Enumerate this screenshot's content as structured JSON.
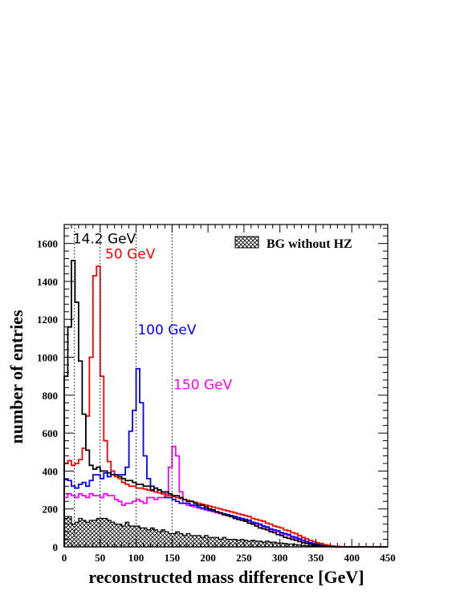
{
  "chart_data": {
    "type": "histogram",
    "xlabel": "reconstructed mass difference [GeV]",
    "ylabel": "number of entries",
    "xlim": [
      0,
      450
    ],
    "ylim": [
      0,
      1700
    ],
    "x_ticks": [
      0,
      50,
      100,
      150,
      200,
      250,
      300,
      350,
      400,
      450
    ],
    "y_ticks": [
      0,
      200,
      400,
      600,
      800,
      1000,
      1200,
      1400,
      1600
    ],
    "bin_width": 5,
    "bin_start": 0,
    "grid": false,
    "legend_position": "top-right",
    "legend": {
      "label": "BG without HZ",
      "style": "cross-hatched"
    },
    "reference_lines_x": [
      14.2,
      50,
      100,
      150
    ],
    "annotations": [
      {
        "text": "14.2 GeV",
        "color": "#000000",
        "x": 12,
        "y": 1600
      },
      {
        "text": "50 GeV",
        "color": "#ff0000",
        "x": 57,
        "y": 1520
      },
      {
        "text": "100 GeV",
        "color": "#0000ff",
        "x": 102,
        "y": 1120
      },
      {
        "text": "150 GeV",
        "color": "#ff00ff",
        "x": 152,
        "y": 830
      }
    ],
    "series": [
      {
        "color": "#000000",
        "values": [
          900,
          1160,
          1510,
          1290,
          980,
          700,
          510,
          430,
          410,
          420,
          400,
          400,
          390,
          380,
          380,
          370,
          360,
          350,
          350,
          340,
          330,
          330,
          320,
          320,
          300,
          310,
          300,
          290,
          290,
          280,
          270,
          270,
          260,
          250,
          240,
          240,
          230,
          220,
          220,
          210,
          200,
          195,
          185,
          180,
          170,
          165,
          160,
          150,
          145,
          140,
          135,
          125,
          120,
          110,
          100,
          95,
          90,
          80,
          75,
          65,
          60,
          50,
          45,
          40,
          35,
          28,
          22,
          18,
          14,
          10,
          8,
          5,
          3,
          2,
          1,
          0,
          0,
          0,
          0,
          0,
          0,
          0,
          0,
          0,
          0,
          0,
          0,
          0,
          0,
          0
        ]
      },
      {
        "color": "#ff0000",
        "values": [
          440,
          455,
          430,
          440,
          460,
          520,
          690,
          1000,
          1430,
          1480,
          900,
          560,
          450,
          400,
          370,
          360,
          340,
          330,
          320,
          320,
          310,
          310,
          305,
          300,
          295,
          290,
          285,
          280,
          270,
          270,
          265,
          260,
          255,
          250,
          245,
          240,
          235,
          230,
          225,
          220,
          215,
          210,
          205,
          200,
          195,
          190,
          185,
          180,
          175,
          170,
          165,
          160,
          150,
          145,
          140,
          135,
          125,
          120,
          110,
          105,
          100,
          90,
          85,
          75,
          70,
          60,
          50,
          42,
          35,
          28,
          22,
          18,
          12,
          8,
          5,
          3,
          2,
          1,
          0,
          0,
          0,
          0,
          0,
          0,
          0,
          0,
          0,
          0,
          0,
          0
        ]
      },
      {
        "color": "#0000ff",
        "values": [
          355,
          350,
          320,
          310,
          330,
          340,
          320,
          350,
          380,
          380,
          360,
          390,
          370,
          400,
          380,
          380,
          380,
          420,
          610,
          720,
          940,
          760,
          480,
          360,
          320,
          290,
          300,
          280,
          260,
          260,
          250,
          240,
          230,
          230,
          230,
          220,
          220,
          210,
          205,
          200,
          195,
          190,
          185,
          180,
          175,
          170,
          165,
          160,
          155,
          150,
          145,
          140,
          130,
          125,
          120,
          110,
          105,
          95,
          90,
          85,
          75,
          70,
          65,
          55,
          50,
          42,
          35,
          28,
          22,
          18,
          14,
          10,
          7,
          4,
          2,
          1,
          0,
          0,
          0,
          0,
          0,
          0,
          0,
          0,
          0,
          0,
          0,
          0,
          0,
          0
        ]
      },
      {
        "color": "#ff00ff",
        "values": [
          260,
          280,
          270,
          260,
          280,
          270,
          260,
          280,
          270,
          270,
          260,
          280,
          270,
          270,
          250,
          240,
          220,
          230,
          230,
          240,
          250,
          240,
          230,
          260,
          260,
          250,
          260,
          260,
          280,
          420,
          530,
          480,
          290,
          230,
          220,
          215,
          210,
          205,
          200,
          195,
          190,
          185,
          180,
          175,
          170,
          165,
          160,
          155,
          150,
          145,
          140,
          135,
          125,
          120,
          115,
          105,
          100,
          90,
          85,
          80,
          70,
          65,
          60,
          50,
          45,
          38,
          32,
          26,
          20,
          15,
          11,
          8,
          5,
          3,
          2,
          1,
          0,
          0,
          0,
          0,
          0,
          0,
          0,
          0,
          0,
          0,
          0,
          0,
          0,
          0
        ]
      },
      {
        "color": "#000000",
        "fill": "hatched",
        "values": [
          150,
          160,
          120,
          130,
          150,
          140,
          130,
          140,
          140,
          150,
          150,
          150,
          140,
          130,
          120,
          120,
          110,
          130,
          110,
          110,
          110,
          100,
          100,
          90,
          100,
          90,
          80,
          90,
          80,
          70,
          70,
          80,
          70,
          60,
          70,
          60,
          60,
          60,
          50,
          60,
          50,
          50,
          50,
          40,
          50,
          40,
          40,
          40,
          35,
          40,
          35,
          30,
          35,
          30,
          30,
          25,
          30,
          25,
          25,
          20,
          20,
          18,
          15,
          15,
          12,
          10,
          8,
          6,
          5,
          4,
          3,
          2,
          1,
          1,
          0,
          0,
          0,
          0,
          0,
          0,
          0,
          0,
          0,
          0,
          0,
          0,
          0,
          0,
          0,
          0
        ]
      }
    ]
  }
}
